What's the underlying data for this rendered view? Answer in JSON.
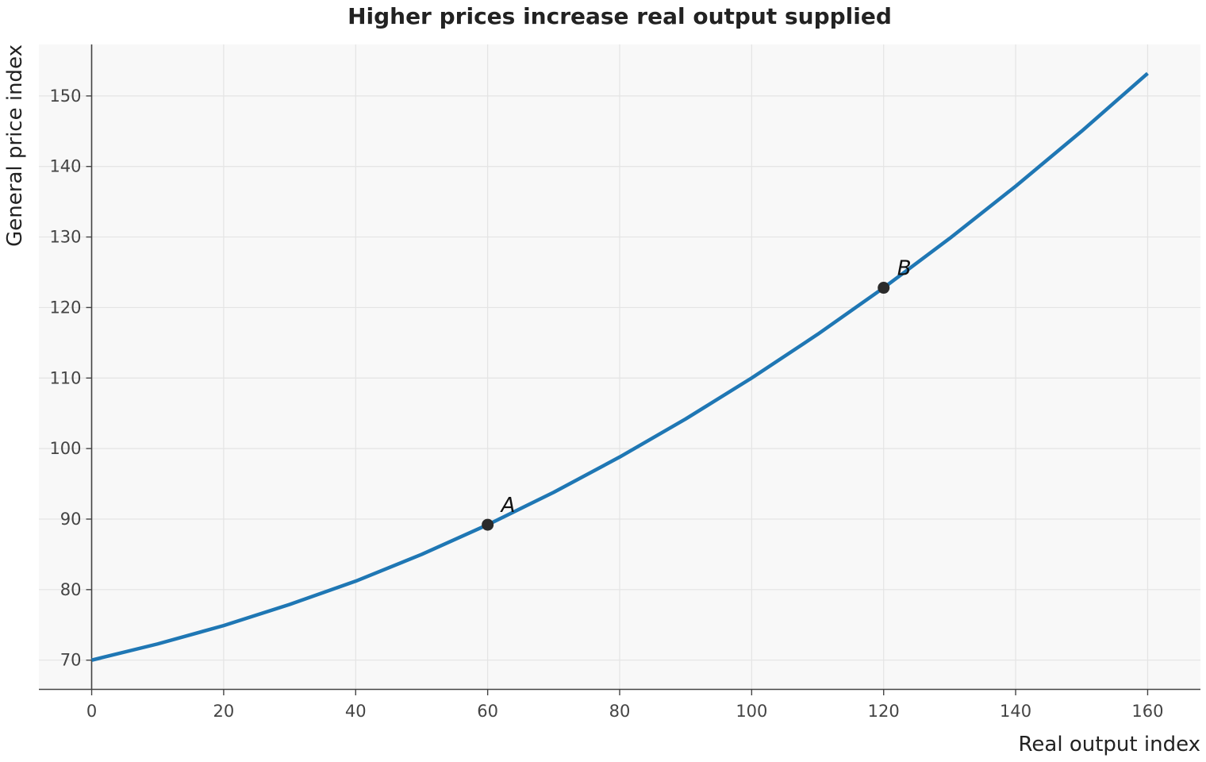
{
  "chart_data": {
    "type": "line",
    "title": "Higher prices increase real output supplied",
    "xlabel": "Real output index",
    "ylabel": "General price index",
    "xlim": [
      -8,
      168
    ],
    "ylim": [
      65.8,
      157.3
    ],
    "xticks": [
      0,
      20,
      40,
      60,
      80,
      100,
      120,
      140,
      160
    ],
    "yticks": [
      70,
      80,
      90,
      100,
      110,
      120,
      130,
      140,
      150
    ],
    "grid": true,
    "series": [
      {
        "color": "#1f77b4",
        "x": [
          0,
          10,
          20,
          30,
          40,
          50,
          60,
          70,
          80,
          90,
          100,
          110,
          120,
          130,
          140,
          150,
          160
        ],
        "y": [
          70.0,
          72.3,
          74.9,
          77.9,
          81.2,
          85.0,
          89.2,
          93.8,
          98.8,
          104.2,
          110.0,
          116.2,
          122.8,
          129.8,
          137.2,
          145.0,
          153.2
        ]
      }
    ],
    "points": [
      {
        "label": "A",
        "x": 60,
        "y": 89.2
      },
      {
        "label": "B",
        "x": 120,
        "y": 122.8
      }
    ],
    "colors": {
      "line": "#1f77b4",
      "point": "#2b2b2b",
      "plot_bg": "#f8f8f8",
      "grid": "#e4e4e4",
      "axis": "#444444"
    }
  }
}
